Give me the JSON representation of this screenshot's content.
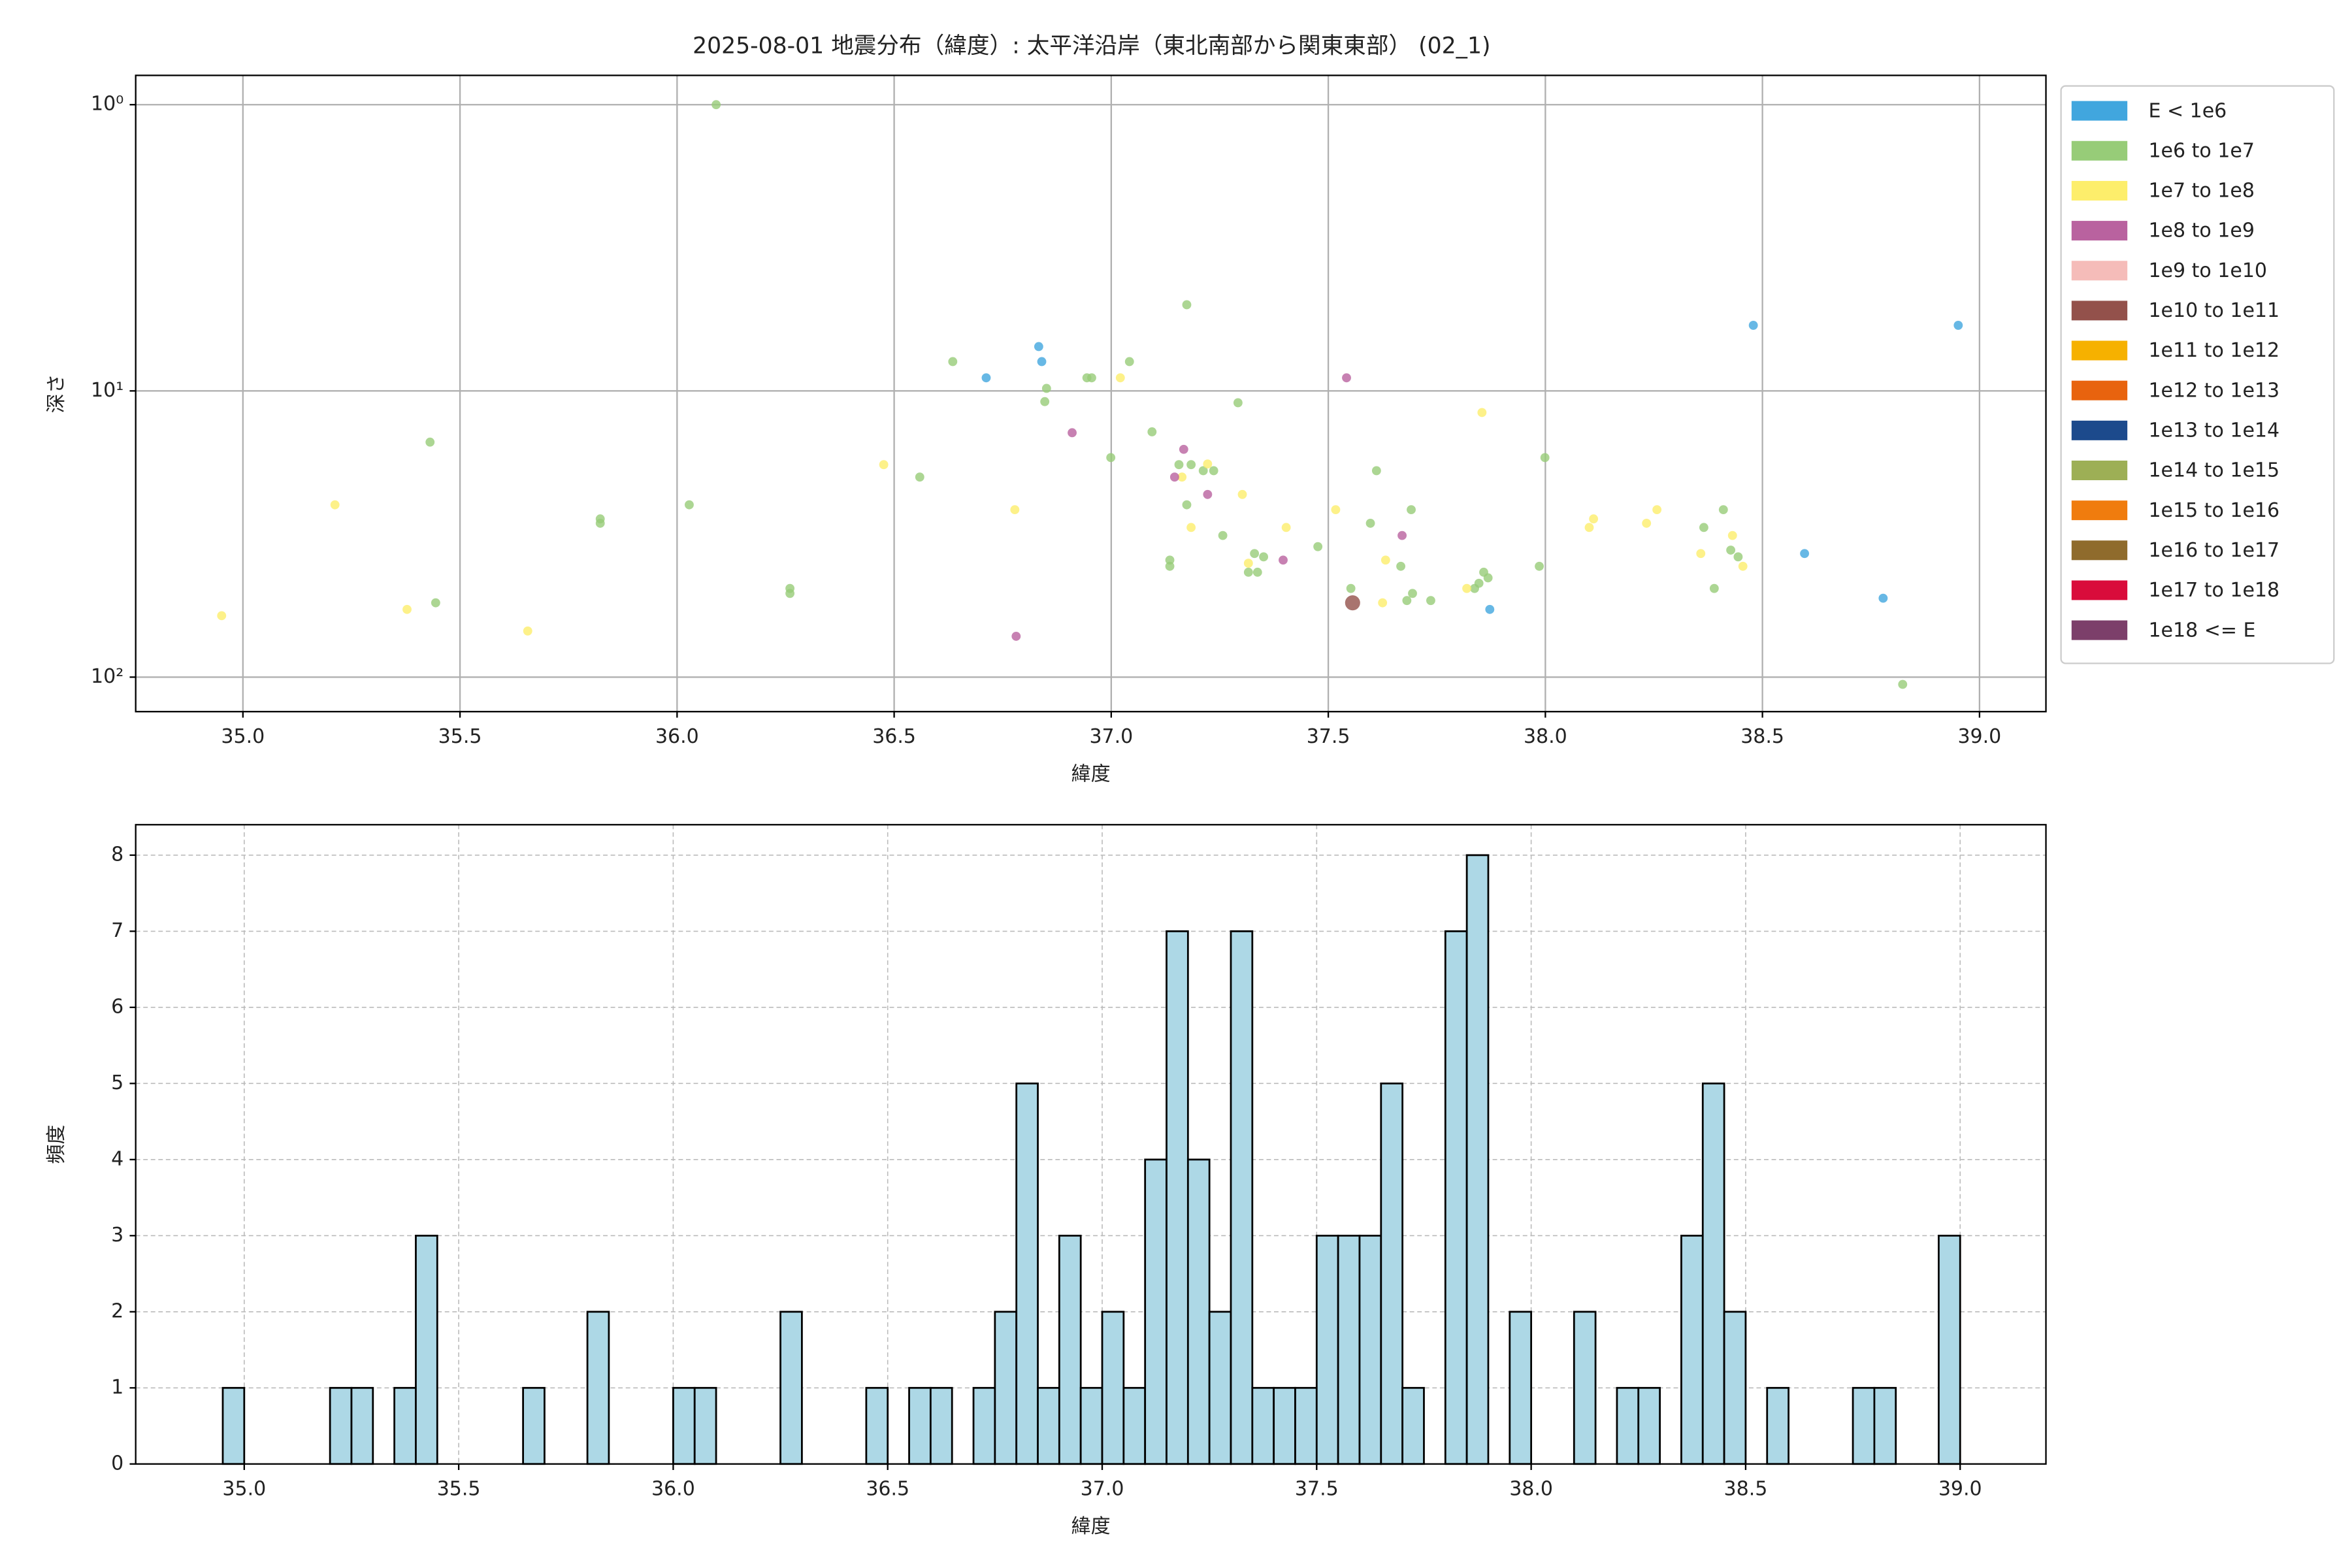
{
  "chart_data": [
    {
      "type": "scatter",
      "title": "2025-08-01 地震分布（緯度）: 太平洋沿岸（東北南部から関東東部） (02_1)",
      "x_label": "緯度",
      "y_label": "深さ",
      "y_scale": "log",
      "grid": true,
      "grid_style": "solid",
      "legend": "outside right",
      "xlim": [
        34.753,
        39.153
      ],
      "xticks": [
        {
          "value": 35,
          "label": "35.0"
        },
        {
          "value": 35.5,
          "label": "35.5"
        },
        {
          "value": 36,
          "label": "36.0"
        },
        {
          "value": 36.5,
          "label": "36.5"
        },
        {
          "value": 37,
          "label": "37.0"
        },
        {
          "value": 37.5,
          "label": "37.5"
        },
        {
          "value": 38,
          "label": "38.0"
        },
        {
          "value": 38.5,
          "label": "38.5"
        },
        {
          "value": 39,
          "label": "39.0"
        }
      ],
      "ylim": [
        132,
        0.79
      ],
      "yticks": [
        {
          "value": 1,
          "label": "10⁰"
        },
        {
          "value": 10,
          "label": "10¹"
        },
        {
          "value": 100,
          "label": "10²"
        }
      ],
      "series": [
        {
          "name": "E < 1e6",
          "color": "#41a6de",
          "x": [
            36.712,
            36.833,
            36.84,
            38.479,
            38.951,
            38.597,
            38.778,
            37.872
          ],
          "values": [
            9.0,
            7.0,
            7.9,
            5.9,
            5.9,
            37,
            53,
            58
          ]
        },
        {
          "name": "1e6 to 1e7",
          "color": "#97cc78",
          "x": [
            36.09,
            37.174,
            36.635,
            37.042,
            36.851,
            36.847,
            36.944,
            36.955,
            37.292,
            35.431,
            37.094,
            36.999,
            37.999,
            37.156,
            37.184,
            37.212,
            37.236,
            37.611,
            36.559,
            36.028,
            37.174,
            37.691,
            38.41,
            35.823,
            35.823,
            37.597,
            38.365,
            37.257,
            37.476,
            38.427,
            37.33,
            37.351,
            38.444,
            37.135,
            37.135,
            37.667,
            37.986,
            37.316,
            37.337,
            37.858,
            37.868,
            38.389,
            36.26,
            36.26,
            37.847,
            37.837,
            35.444,
            37.552,
            37.694,
            37.736,
            37.681,
            38.823
          ],
          "values": [
            1.0,
            5.0,
            7.9,
            7.9,
            9.8,
            10.9,
            9.0,
            9.0,
            11,
            15.1,
            13.9,
            17.1,
            17.1,
            18.1,
            18.1,
            19,
            19,
            19,
            20,
            25,
            25,
            26,
            26,
            28,
            29,
            29,
            30,
            32,
            35,
            36,
            37,
            38,
            38,
            39,
            41,
            41,
            41,
            43,
            43,
            43,
            45,
            49,
            49,
            51,
            47,
            49,
            55,
            49,
            51,
            54,
            54,
            106
          ]
        },
        {
          "name": "1e7 to 1e8",
          "color": "#fdee6b",
          "x": [
            35.212,
            34.951,
            35.378,
            35.656,
            36.476,
            36.778,
            37.021,
            37.854,
            37.222,
            37.163,
            37.184,
            37.302,
            37.403,
            37.517,
            37.632,
            37.625,
            37.316,
            37.819,
            38.101,
            38.111,
            38.233,
            38.257,
            38.358,
            38.431,
            38.455
          ],
          "values": [
            25,
            61,
            58,
            69,
            18.1,
            26,
            9.0,
            11.9,
            18,
            20,
            30,
            23,
            30,
            26,
            39,
            55,
            40,
            49,
            30,
            28,
            29,
            26,
            37,
            32,
            41
          ]
        },
        {
          "name": "1e8 to 1e9",
          "color": "#b9629f",
          "x": [
            37.542,
            36.91,
            37.167,
            37.146,
            37.222,
            37.67,
            37.396,
            36.781
          ],
          "values": [
            9.0,
            14,
            16,
            20,
            23,
            32,
            39,
            72
          ]
        },
        {
          "name": "1e9 to 1e10",
          "color": "#f5bcb9",
          "x": [],
          "values": []
        },
        {
          "name": "1e10 to 1e11",
          "color": "#93514b",
          "x": [
            37.556
          ],
          "values": [
            55
          ]
        },
        {
          "name": "1e11 to 1e12",
          "color": "#f6b100",
          "x": [],
          "values": []
        },
        {
          "name": "1e12 to 1e13",
          "color": "#e8630e",
          "x": [],
          "values": []
        },
        {
          "name": "1e13 to 1e14",
          "color": "#1c4a8c",
          "x": [],
          "values": []
        },
        {
          "name": "1e14 to 1e15",
          "color": "#9daf55",
          "x": [],
          "values": []
        },
        {
          "name": "1e15 to 1e16",
          "color": "#f07c0e",
          "x": [],
          "values": []
        },
        {
          "name": "1e16 to 1e17",
          "color": "#8f6b2c",
          "x": [],
          "values": []
        },
        {
          "name": "1e17 to 1e18",
          "color": "#d90c3b",
          "x": [],
          "values": []
        },
        {
          "name": "1e18 <= E",
          "color": "#7c3f6a",
          "x": [],
          "values": []
        }
      ]
    },
    {
      "type": "histogram",
      "x_label": "緯度",
      "y_label": "頻度",
      "color": "#add8e6",
      "edge_color": "#000000",
      "grid": true,
      "grid_style": "dashed",
      "xlim": [
        34.747,
        39.2
      ],
      "xticks": [
        {
          "value": 35,
          "label": "35.0"
        },
        {
          "value": 35.5,
          "label": "35.5"
        },
        {
          "value": 36,
          "label": "36.0"
        },
        {
          "value": 36.5,
          "label": "36.5"
        },
        {
          "value": 37,
          "label": "37.0"
        },
        {
          "value": 37.5,
          "label": "37.5"
        },
        {
          "value": 38,
          "label": "38.0"
        },
        {
          "value": 38.5,
          "label": "38.5"
        },
        {
          "value": 39,
          "label": "39.0"
        }
      ],
      "ylim": [
        0,
        8.4
      ],
      "yticks": [
        0,
        1,
        2,
        3,
        4,
        5,
        6,
        7,
        8
      ],
      "bins": [
        34.95,
        35.0,
        35.05,
        35.1,
        35.15,
        35.2,
        35.25,
        35.3,
        35.35,
        35.4,
        35.45,
        35.5,
        35.55,
        35.6,
        35.65,
        35.7,
        35.75,
        35.8,
        35.85,
        35.9,
        35.95,
        36.0,
        36.05,
        36.1,
        36.15,
        36.2,
        36.25,
        36.3,
        36.35,
        36.4,
        36.45,
        36.5,
        36.55,
        36.6,
        36.65,
        36.7,
        36.75,
        36.8,
        36.85,
        36.9,
        36.95,
        37.0,
        37.05,
        37.1,
        37.15,
        37.2,
        37.25,
        37.3,
        37.35,
        37.4,
        37.45,
        37.5,
        37.55,
        37.6,
        37.65,
        37.7,
        37.75,
        37.8,
        37.85,
        37.9,
        37.95,
        38.0,
        38.05,
        38.1,
        38.15,
        38.2,
        38.25,
        38.3,
        38.35,
        38.4,
        38.45,
        38.5,
        38.55,
        38.6,
        38.65,
        38.7,
        38.75,
        38.8,
        38.85,
        38.9,
        38.95,
        39.0
      ],
      "values": [
        1,
        0,
        0,
        0,
        0,
        1,
        1,
        0,
        1,
        3,
        0,
        0,
        0,
        0,
        1,
        0,
        0,
        2,
        0,
        0,
        0,
        1,
        1,
        0,
        0,
        0,
        2,
        0,
        0,
        0,
        1,
        0,
        1,
        1,
        0,
        1,
        2,
        5,
        1,
        3,
        1,
        2,
        1,
        4,
        7,
        4,
        2,
        7,
        1,
        1,
        1,
        3,
        3,
        3,
        5,
        1,
        0,
        7,
        8,
        0,
        2,
        0,
        0,
        2,
        0,
        1,
        1,
        0,
        3,
        5,
        2,
        0,
        1,
        0,
        0,
        0,
        1,
        1,
        0,
        0,
        3
      ]
    }
  ]
}
